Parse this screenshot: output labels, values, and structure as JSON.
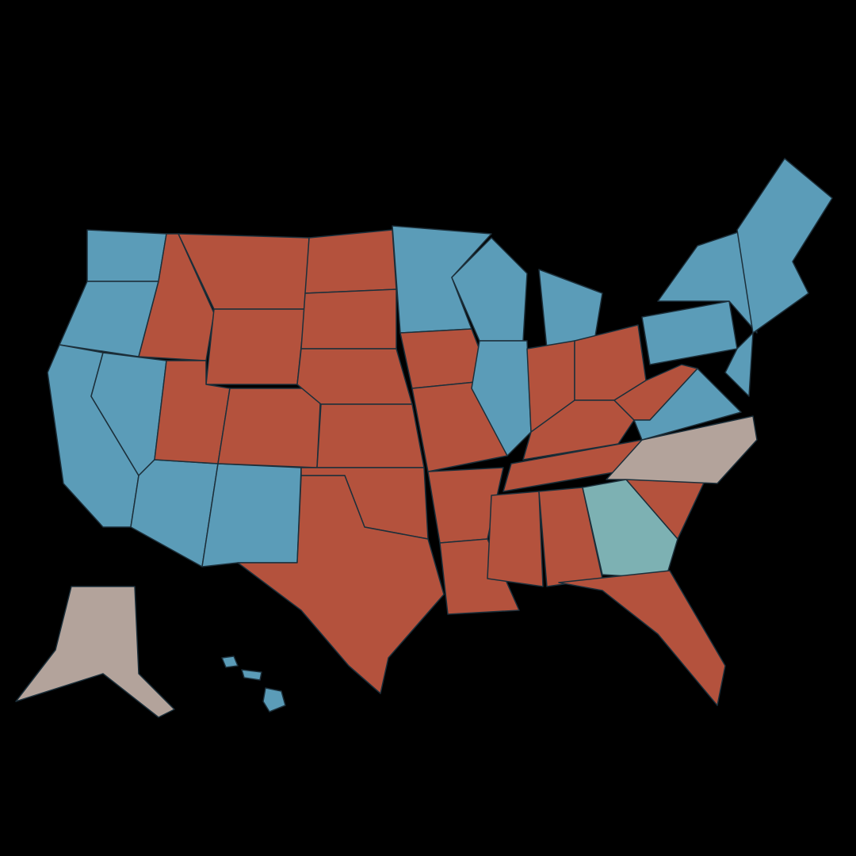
{
  "map": {
    "background": "#000000",
    "fills": [
      "#5b9cb8",
      "#b4523d",
      "#b3a39b",
      "#7db1b3"
    ],
    "outline": "#1c2f3a"
  }
}
